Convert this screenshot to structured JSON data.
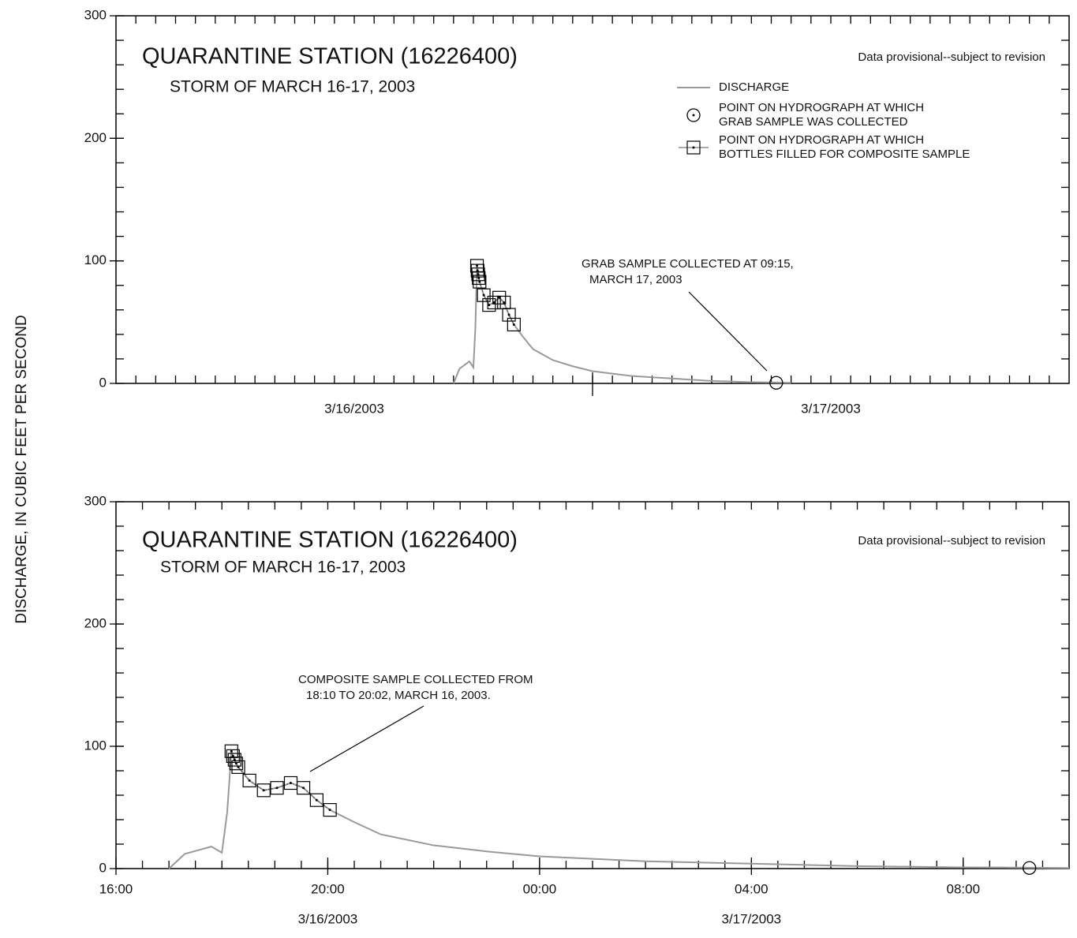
{
  "ylabel": "DISCHARGE, IN CUBIC FEET PER SECOND",
  "chart_data": [
    {
      "type": "line",
      "title": "QUARANTINE STATION (16226400)",
      "subtitle": "STORM OF MARCH 16-17, 2003",
      "note": "Data provisional--subject to revision",
      "annotation": [
        "GRAB SAMPLE COLLECTED AT 09:15,",
        "MARCH 17, 2003"
      ],
      "xlim": [
        0,
        48
      ],
      "x_minor_step": 1,
      "x_major_step": 24,
      "xticks": [
        {
          "value": 12,
          "label": "3/16/2003"
        },
        {
          "value": 36,
          "label": "3/17/2003"
        }
      ],
      "ylim": [
        0,
        300
      ],
      "yticks": [
        0,
        100,
        200,
        300
      ],
      "y_minor_step": 20,
      "legend": "upper right",
      "series": [
        {
          "name": [
            "DISCHARGE"
          ],
          "color": "#999999",
          "marker": "none",
          "x": [
            17.0,
            17.3,
            17.8,
            18.0,
            18.1,
            18.18,
            18.21,
            18.24,
            18.27,
            18.31,
            18.52,
            18.79,
            19.04,
            19.3,
            19.54,
            19.79,
            20.04,
            20.5,
            21,
            22,
            23,
            24,
            25,
            26,
            27,
            28,
            29,
            30,
            31,
            32,
            33,
            34
          ],
          "values": [
            0,
            12,
            18,
            13,
            46,
            96,
            92,
            89,
            86,
            83,
            72,
            64,
            66,
            70,
            66,
            56,
            48,
            38,
            28,
            19,
            14,
            10,
            8,
            6,
            5,
            4,
            3,
            2,
            1.5,
            1,
            0.8,
            0.5
          ]
        },
        {
          "name": [
            "POINT ON HYDROGRAPH AT WHICH",
            "GRAB SAMPLE WAS COLLECTED"
          ],
          "color": "#000000",
          "marker": "circle",
          "x": [
            33.25
          ],
          "values": [
            0.5
          ]
        },
        {
          "name": [
            "POINT ON HYDROGRAPH AT WHICH",
            "BOTTLES FILLED FOR COMPOSITE SAMPLE"
          ],
          "color": "#000000",
          "marker": "square",
          "x": [
            18.18,
            18.21,
            18.24,
            18.27,
            18.31,
            18.52,
            18.79,
            19.04,
            19.3,
            19.54,
            19.79,
            20.04
          ],
          "values": [
            96,
            92,
            89,
            86,
            83,
            72,
            64,
            66,
            70,
            66,
            56,
            48
          ]
        }
      ]
    },
    {
      "type": "line",
      "title": "QUARANTINE STATION (16226400)",
      "subtitle": "STORM OF MARCH 16-17, 2003",
      "note": "Data provisional--subject to revision",
      "annotation": [
        "COMPOSITE SAMPLE COLLECTED FROM",
        "18:10 TO 20:02, MARCH 16, 2003."
      ],
      "xlim": [
        16,
        34
      ],
      "x_minor_step": 0.5,
      "xticks": [
        {
          "value": 16,
          "label": "16:00"
        },
        {
          "value": 20,
          "label": "20:00"
        },
        {
          "value": 24,
          "label": "00:00"
        },
        {
          "value": 28,
          "label": "04:00"
        },
        {
          "value": 32,
          "label": "08:00"
        }
      ],
      "date_labels": [
        {
          "value": 20,
          "label": "3/16/2003"
        },
        {
          "value": 28,
          "label": "3/17/2003"
        }
      ],
      "ylim": [
        0,
        300
      ],
      "yticks": [
        0,
        100,
        200,
        300
      ],
      "y_minor_step": 20,
      "legend": "none",
      "series": [
        {
          "name": [
            "DISCHARGE"
          ],
          "color": "#999999",
          "marker": "none",
          "x": [
            17.0,
            17.3,
            17.8,
            18.0,
            18.1,
            18.18,
            18.21,
            18.24,
            18.27,
            18.31,
            18.52,
            18.79,
            19.04,
            19.3,
            19.54,
            19.79,
            20.04,
            20.5,
            21,
            22,
            23,
            24,
            25,
            26,
            27,
            28,
            29,
            30,
            31,
            32,
            33,
            34
          ],
          "values": [
            0,
            12,
            18,
            13,
            46,
            96,
            92,
            89,
            86,
            83,
            72,
            64,
            66,
            70,
            66,
            56,
            48,
            38,
            28,
            19,
            14,
            10,
            8,
            6,
            5,
            4,
            3,
            2,
            1.5,
            1,
            0.8,
            0.5
          ]
        },
        {
          "name": [
            "POINT ON HYDROGRAPH AT WHICH",
            "GRAB SAMPLE WAS COLLECTED"
          ],
          "color": "#000000",
          "marker": "circle",
          "x": [
            33.25
          ],
          "values": [
            0.5
          ]
        },
        {
          "name": [
            "POINT ON HYDROGRAPH AT WHICH",
            "BOTTLES FILLED FOR COMPOSITE SAMPLE"
          ],
          "color": "#000000",
          "marker": "square",
          "x": [
            18.18,
            18.21,
            18.24,
            18.27,
            18.31,
            18.52,
            18.79,
            19.04,
            19.3,
            19.54,
            19.79,
            20.04
          ],
          "values": [
            96,
            92,
            89,
            86,
            83,
            72,
            64,
            66,
            70,
            66,
            56,
            48
          ]
        }
      ]
    }
  ]
}
